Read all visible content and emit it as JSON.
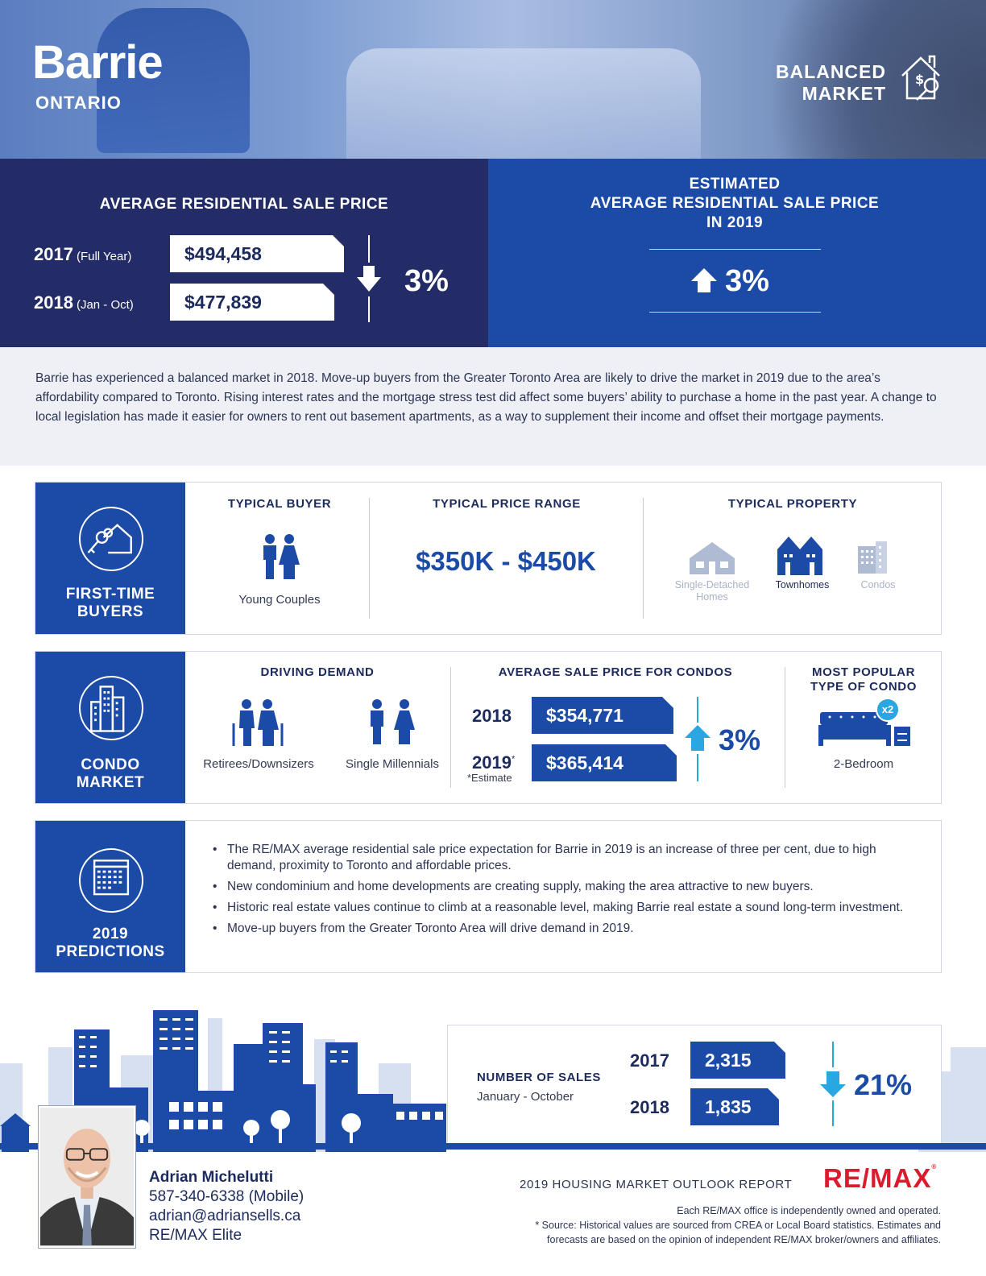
{
  "header": {
    "city": "Barrie",
    "province": "ONTARIO",
    "market_line1": "BALANCED",
    "market_line2": "MARKET"
  },
  "price_band": {
    "heading": "AVERAGE RESIDENTIAL SALE PRICE",
    "rows": [
      {
        "year": "2017",
        "period": "(Full Year)",
        "price": "$494,458"
      },
      {
        "year": "2018",
        "period": "(Jan - Oct)",
        "price": "$477,839"
      }
    ],
    "change": "3%",
    "change_direction": "down",
    "estimate_line1": "ESTIMATED",
    "estimate_line2": "AVERAGE RESIDENTIAL SALE PRICE",
    "estimate_line3": "IN 2019",
    "estimate_change": "3%",
    "estimate_direction": "up"
  },
  "summary": "Barrie has experienced a balanced market in 2018. Move-up buyers from the Greater Toronto Area are likely to drive the market in 2019 due to the area’s affordability compared to Toronto. Rising interest rates and the mortgage stress test did affect some buyers’ ability to purchase a home in the past year. A change to local legislation has made it easier for owners to rent out basement apartments, as a way to supplement their income and offset their mortgage payments.",
  "first_time": {
    "tab_line1": "FIRST-TIME",
    "tab_line2": "BUYERS",
    "buyer_heading": "TYPICAL BUYER",
    "buyer_value": "Young Couples",
    "range_heading": "TYPICAL PRICE RANGE",
    "range_value": "$350K - $450K",
    "property_heading": "TYPICAL PROPERTY",
    "property_1_line1": "Single-Detached",
    "property_1_line2": "Homes",
    "property_2": "Townhomes",
    "property_3": "Condos"
  },
  "condo": {
    "tab_line1": "CONDO",
    "tab_line2": "MARKET",
    "demand_heading": "DRIVING DEMAND",
    "demand_1": "Retirees/Downsizers",
    "demand_2": "Single Millennials",
    "price_heading": "AVERAGE SALE PRICE FOR CONDOS",
    "rows": [
      {
        "year": "2018",
        "mark": "",
        "price": "$354,771"
      },
      {
        "year": "2019",
        "mark": "*",
        "price": "$365,414"
      }
    ],
    "estimate_note": "*Estimate",
    "change": "3%",
    "change_direction": "up",
    "popular_line1": "MOST POPULAR",
    "popular_line2": "TYPE OF CONDO",
    "popular_badge": "x2",
    "popular_value": "2-Bedroom"
  },
  "predictions": {
    "tab_line1": "2019",
    "tab_line2": "PREDICTIONS",
    "items": [
      "The RE/MAX average residential sale price expectation for Barrie in 2019 is an increase of three per cent, due to high demand, proximity to Toronto and affordable prices.",
      "New condominium and home developments are creating supply, making the area attractive to new buyers.",
      "Historic real estate values continue to climb at a reasonable level, making Barrie real estate a sound long-term investment.",
      "Move-up buyers from the Greater Toronto Area will drive demand in 2019."
    ]
  },
  "sales": {
    "title": "NUMBER OF SALES",
    "subtitle": "January - October",
    "rows": [
      {
        "year": "2017",
        "value": "2,315"
      },
      {
        "year": "2018",
        "value": "1,835"
      }
    ],
    "change": "21%",
    "change_direction": "down"
  },
  "agent": {
    "name": "Adrian Michelutti",
    "phone": "587-340-6338 (Mobile)",
    "email": "adrian@adriansells.ca",
    "office": "RE/MAX Elite"
  },
  "footer": {
    "report_title": "2019 HOUSING MARKET OUTLOOK REPORT",
    "logo": "RE/MAX",
    "logo_mark": "®",
    "disclaimer_1": "Each RE/MAX office is independently owned and operated.",
    "disclaimer_2": "* Source: Historical values are sourced from CREA or Local Board statistics. Estimates and",
    "disclaimer_3": "forecasts are based on the opinion of independent RE/MAX broker/owners and affiliates."
  },
  "colors": {
    "navy": "#232c66",
    "brand_blue": "#1b4ba6",
    "accent_cyan": "#2aa6e0",
    "remax_red": "#dc1c2e"
  }
}
